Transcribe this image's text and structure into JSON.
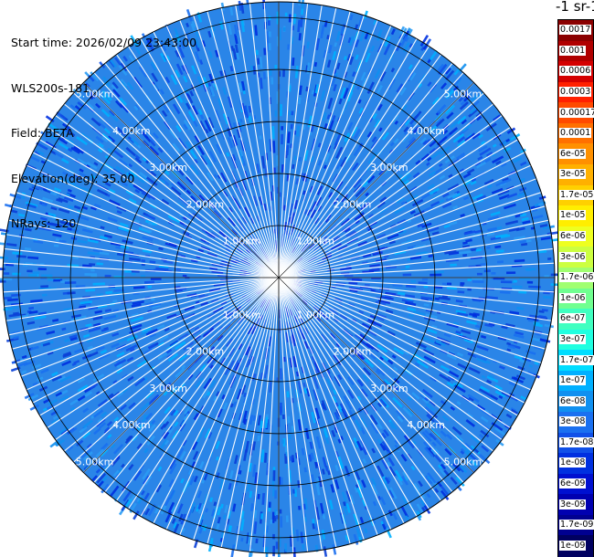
{
  "info": {
    "start_time": "Start time: 2026/02/09 23:43:00",
    "device": "WLS200s-181",
    "field": "Field: BETA",
    "elevation": "Elevation(deg): 35.00",
    "nrays": "NRays: 120"
  },
  "colorbar": {
    "title": "-1 sr-1",
    "labels": [
      "0.0017",
      "0.001",
      "0.0006",
      "0.0003",
      "0.00017",
      "0.0001",
      "6e-05",
      "3e-05",
      "1.7e-05",
      "1e-05",
      "6e-06",
      "3e-06",
      "1.7e-06",
      "1e-06",
      "6e-07",
      "3e-07",
      "1.7e-07",
      "1e-07",
      "6e-08",
      "3e-08",
      "1.7e-08",
      "1e-08",
      "6e-09",
      "3e-09",
      "1.7e-09",
      "1e-09"
    ],
    "colors": [
      "#8b0000",
      "#b00000",
      "#d40000",
      "#ff2000",
      "#ff4a00",
      "#ff7000",
      "#ff9000",
      "#ffb000",
      "#ffd000",
      "#ffee00",
      "#eeff20",
      "#ccff40",
      "#a0ff70",
      "#70ff90",
      "#40ffc0",
      "#20ffe0",
      "#00ddff",
      "#00b0ff",
      "#1090f0",
      "#1a70f0",
      "#1050e8",
      "#0030e0",
      "#0010d0",
      "#0000b0",
      "#000090",
      "#000060"
    ]
  },
  "ring_labels": [
    "1.00km",
    "2.00km",
    "3.00km",
    "4.00km",
    "5.00km"
  ],
  "polar": {
    "max_range_km": 5.3,
    "nrays": 120,
    "background_color": "#2a85e8",
    "ray_color": "#ffffff"
  }
}
